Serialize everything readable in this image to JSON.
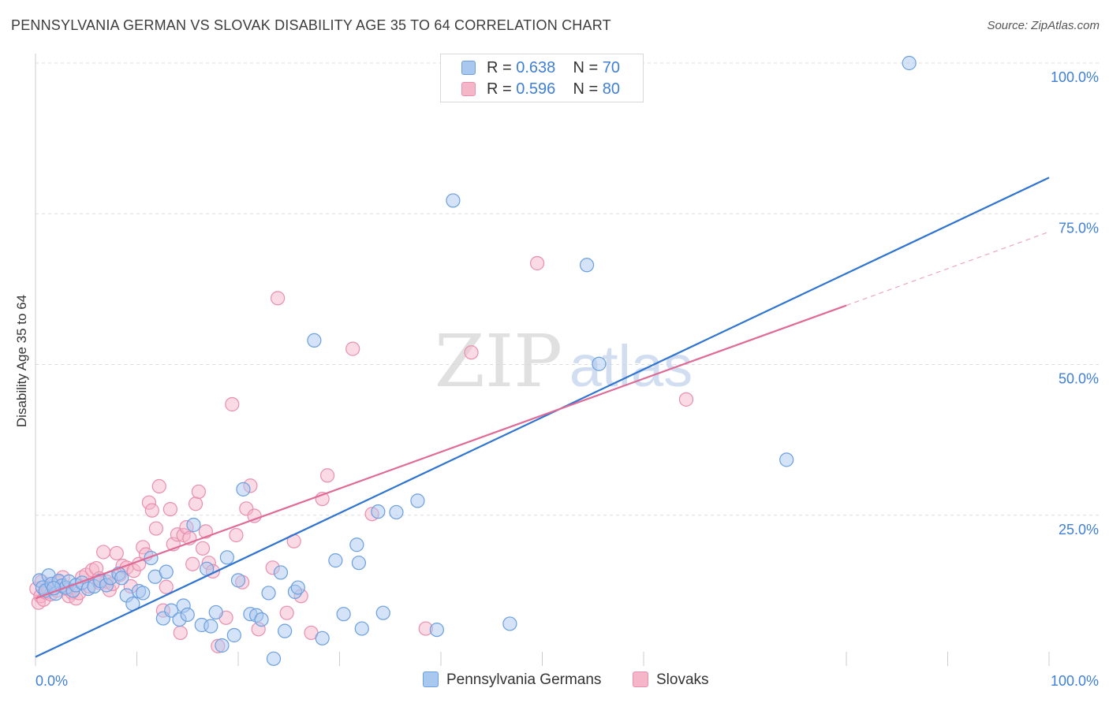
{
  "title": "PENNSYLVANIA GERMAN VS SLOVAK DISABILITY AGE 35 TO 64 CORRELATION CHART",
  "source": "Source: ZipAtlas.com",
  "watermark": {
    "zip": "ZIP",
    "atlas": "atlas"
  },
  "legend": {
    "rows": [
      {
        "r_label": "R =",
        "r_value": "0.638",
        "n_label": "N =",
        "n_value": "70"
      },
      {
        "r_label": "R =",
        "r_value": "0.596",
        "n_label": "N =",
        "n_value": "80"
      }
    ]
  },
  "bottom_legend": {
    "blue": "Pennsylvania Germans",
    "pink": "Slovaks"
  },
  "colors": {
    "blue_fill": "#a9c8f0",
    "blue_stroke": "#6b9fe0",
    "blue_line": "#2f74d0",
    "pink_fill": "#f6b6ca",
    "pink_stroke": "#e98fae",
    "pink_line": "#e06a96",
    "tick_label": "#3f7fd6",
    "grid": "#dddddd"
  },
  "chart_data": {
    "type": "scatter",
    "title": "PENNSYLVANIA GERMAN VS SLOVAK DISABILITY AGE 35 TO 64 CORRELATION CHART",
    "xlabel": "",
    "ylabel": "Disability Age 35 to 64",
    "xlim": [
      0,
      100
    ],
    "ylim": [
      0,
      100
    ],
    "x_tick_labels": [
      "0.0%",
      "100.0%"
    ],
    "y_tick_labels": [
      "25.0%",
      "50.0%",
      "75.0%",
      "100.0%"
    ],
    "y_ticks": [
      25,
      50,
      75,
      100
    ],
    "grid": true,
    "legend_position": "top-center",
    "series": [
      {
        "name": "Pennsylvania Germans",
        "color": "blue",
        "trendline": {
          "x": [
            0,
            100
          ],
          "y": [
            1.5,
            81.0
          ]
        },
        "points": [
          [
            0.4,
            14.2
          ],
          [
            0.7,
            13.0
          ],
          [
            1.0,
            12.5
          ],
          [
            1.3,
            15.0
          ],
          [
            1.6,
            13.6
          ],
          [
            2.0,
            12.0
          ],
          [
            2.3,
            14.1
          ],
          [
            2.6,
            13.3
          ],
          [
            3.0,
            13.0
          ],
          [
            3.3,
            14.0
          ],
          [
            3.7,
            12.5
          ],
          [
            4.0,
            13.4
          ],
          [
            4.6,
            13.8
          ],
          [
            5.2,
            12.8
          ],
          [
            5.8,
            13.2
          ],
          [
            6.4,
            14.1
          ],
          [
            7.0,
            13.4
          ],
          [
            7.4,
            14.6
          ],
          [
            8.2,
            15.3
          ],
          [
            9.0,
            11.7
          ],
          [
            9.6,
            10.3
          ],
          [
            10.2,
            12.4
          ],
          [
            10.6,
            12.1
          ],
          [
            11.4,
            17.9
          ],
          [
            11.8,
            14.8
          ],
          [
            12.6,
            7.9
          ],
          [
            12.9,
            15.6
          ],
          [
            13.4,
            9.2
          ],
          [
            14.2,
            7.7
          ],
          [
            14.6,
            10.0
          ],
          [
            15.0,
            8.5
          ],
          [
            15.6,
            23.4
          ],
          [
            16.4,
            6.8
          ],
          [
            16.9,
            16.1
          ],
          [
            17.3,
            6.6
          ],
          [
            17.8,
            8.9
          ],
          [
            18.4,
            3.4
          ],
          [
            18.9,
            18.0
          ],
          [
            19.6,
            5.1
          ],
          [
            20.0,
            14.2
          ],
          [
            20.5,
            29.3
          ],
          [
            21.2,
            8.6
          ],
          [
            21.8,
            8.4
          ],
          [
            22.3,
            7.7
          ],
          [
            23.0,
            12.1
          ],
          [
            23.5,
            1.2
          ],
          [
            24.2,
            15.5
          ],
          [
            24.6,
            5.8
          ],
          [
            25.6,
            12.3
          ],
          [
            25.9,
            13.0
          ],
          [
            27.5,
            54.0
          ],
          [
            28.3,
            4.6
          ],
          [
            29.6,
            17.5
          ],
          [
            30.4,
            8.6
          ],
          [
            31.7,
            20.1
          ],
          [
            31.9,
            17.1
          ],
          [
            32.2,
            6.2
          ],
          [
            33.8,
            25.6
          ],
          [
            34.3,
            8.8
          ],
          [
            35.6,
            25.5
          ],
          [
            37.7,
            27.4
          ],
          [
            39.6,
            6.0
          ],
          [
            41.2,
            77.2
          ],
          [
            46.8,
            7.0
          ],
          [
            54.4,
            66.5
          ],
          [
            55.6,
            50.1
          ],
          [
            74.1,
            34.2
          ],
          [
            86.2,
            100.0
          ],
          [
            1.8,
            12.9
          ],
          [
            8.5,
            14.6
          ]
        ]
      },
      {
        "name": "Slovaks",
        "color": "pink",
        "trendline": {
          "x": [
            0,
            80
          ],
          "y": [
            11.2,
            59.8
          ]
        },
        "trendline_dashed": {
          "x": [
            80,
            100
          ],
          "y": [
            59.8,
            72.0
          ]
        },
        "points": [
          [
            0.1,
            12.8
          ],
          [
            0.3,
            10.5
          ],
          [
            0.5,
            11.6
          ],
          [
            0.6,
            14.0
          ],
          [
            0.8,
            11.0
          ],
          [
            1.0,
            12.2
          ],
          [
            1.2,
            12.9
          ],
          [
            1.5,
            11.9
          ],
          [
            1.8,
            13.4
          ],
          [
            2.1,
            12.5
          ],
          [
            2.4,
            13.9
          ],
          [
            2.7,
            14.7
          ],
          [
            3.0,
            12.8
          ],
          [
            3.3,
            11.6
          ],
          [
            3.6,
            12.2
          ],
          [
            4.0,
            11.2
          ],
          [
            4.3,
            12.1
          ],
          [
            4.6,
            14.7
          ],
          [
            5.0,
            15.1
          ],
          [
            5.3,
            13.2
          ],
          [
            5.6,
            15.9
          ],
          [
            6.0,
            16.2
          ],
          [
            6.3,
            14.5
          ],
          [
            6.7,
            18.9
          ],
          [
            7.0,
            14.0
          ],
          [
            7.3,
            12.6
          ],
          [
            7.6,
            13.6
          ],
          [
            8.0,
            18.7
          ],
          [
            8.3,
            15.1
          ],
          [
            8.6,
            16.6
          ],
          [
            9.0,
            16.3
          ],
          [
            9.4,
            13.2
          ],
          [
            9.7,
            15.8
          ],
          [
            10.2,
            16.9
          ],
          [
            10.6,
            19.7
          ],
          [
            10.9,
            18.5
          ],
          [
            11.2,
            27.1
          ],
          [
            11.5,
            25.8
          ],
          [
            11.9,
            22.8
          ],
          [
            12.2,
            29.8
          ],
          [
            12.6,
            9.2
          ],
          [
            12.9,
            13.1
          ],
          [
            13.3,
            26.0
          ],
          [
            13.6,
            20.2
          ],
          [
            14.0,
            21.8
          ],
          [
            14.3,
            5.5
          ],
          [
            14.6,
            21.7
          ],
          [
            14.9,
            23.0
          ],
          [
            15.2,
            21.2
          ],
          [
            15.5,
            16.9
          ],
          [
            15.8,
            26.9
          ],
          [
            16.1,
            28.9
          ],
          [
            16.5,
            19.5
          ],
          [
            16.8,
            22.3
          ],
          [
            17.1,
            17.1
          ],
          [
            17.5,
            15.7
          ],
          [
            18.0,
            3.3
          ],
          [
            18.8,
            8.0
          ],
          [
            19.4,
            43.4
          ],
          [
            19.8,
            21.7
          ],
          [
            20.4,
            13.9
          ],
          [
            20.8,
            26.1
          ],
          [
            21.2,
            29.9
          ],
          [
            21.6,
            24.9
          ],
          [
            22.0,
            6.1
          ],
          [
            23.4,
            16.3
          ],
          [
            23.9,
            61.0
          ],
          [
            24.8,
            8.8
          ],
          [
            25.5,
            20.7
          ],
          [
            26.2,
            11.6
          ],
          [
            27.2,
            5.5
          ],
          [
            28.3,
            27.7
          ],
          [
            28.8,
            31.6
          ],
          [
            31.3,
            52.6
          ],
          [
            33.2,
            25.2
          ],
          [
            38.5,
            6.2
          ],
          [
            43.0,
            52.0
          ],
          [
            49.5,
            66.8
          ],
          [
            64.2,
            44.2
          ],
          [
            6.3,
            13.8
          ]
        ]
      }
    ]
  }
}
